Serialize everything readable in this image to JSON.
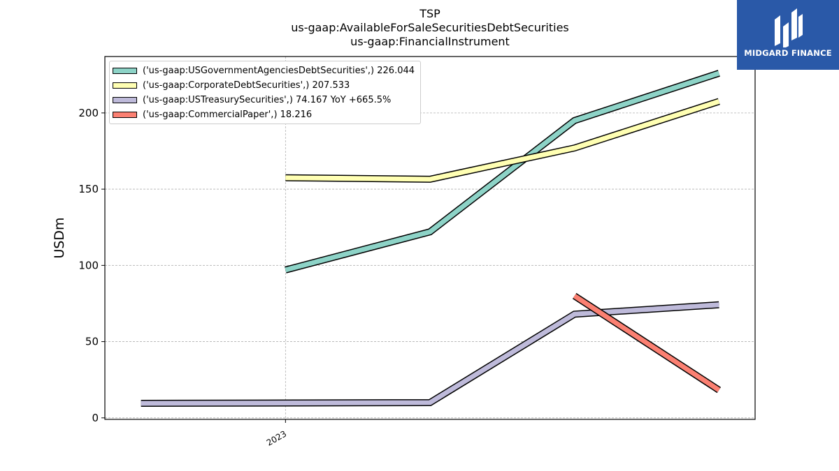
{
  "title": {
    "line1": "TSP",
    "line2": "us-gaap:AvailableForSaleSecuritiesDebtSecurities",
    "line3": "us-gaap:FinancialInstrument"
  },
  "logo": {
    "text": "MIDGARD FINANCE",
    "icon": "midgard-logo-icon",
    "color": "#2a59a8"
  },
  "chart_data": {
    "type": "line",
    "ylabel": "USDm",
    "ylim": [
      -1,
      237
    ],
    "yticks": [
      0,
      50,
      100,
      150,
      200
    ],
    "x": [
      -1,
      0,
      1,
      2,
      3
    ],
    "xlim": [
      -1.25,
      3.25
    ],
    "xticks": [
      {
        "x": 0,
        "label": "2023"
      }
    ],
    "grid": true,
    "legend_position": "top-left",
    "series": [
      {
        "name": "('us-gaap:USGovernmentAgenciesDebtSecurities',) 226.044",
        "color": "#8dd3c7",
        "points": [
          [
            0,
            97
          ],
          [
            1,
            122
          ],
          [
            2,
            195
          ],
          [
            3,
            226.044
          ]
        ]
      },
      {
        "name": "('us-gaap:CorporateDebtSecurities',) 207.533",
        "color": "#ffffb3",
        "points": [
          [
            0,
            157.5
          ],
          [
            1,
            156.5
          ],
          [
            2,
            177
          ],
          [
            3,
            207.533
          ]
        ]
      },
      {
        "name": "('us-gaap:USTreasurySecurities',) 74.167 YoY +665.5%",
        "color": "#bebada",
        "points": [
          [
            -1,
            9.5
          ],
          [
            1,
            10
          ],
          [
            2,
            68
          ],
          [
            3,
            74.167
          ]
        ]
      },
      {
        "name": "('us-gaap:CommercialPaper',) 18.216",
        "color": "#fb8072",
        "points": [
          [
            2,
            80
          ],
          [
            3,
            18.216
          ]
        ]
      }
    ]
  }
}
